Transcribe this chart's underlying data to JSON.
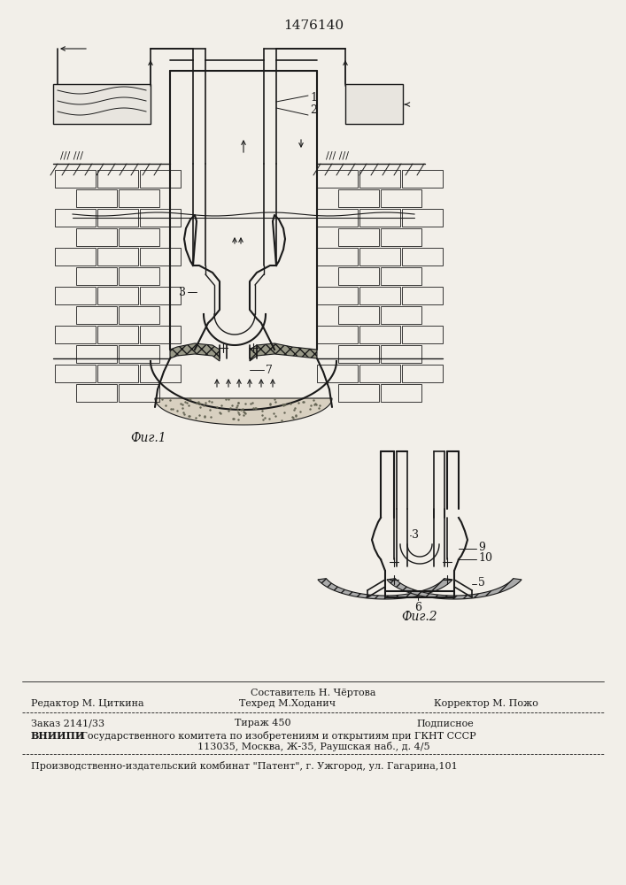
{
  "title": "1476140",
  "fig1_label": "Фиг.1",
  "fig2_label": "Фиг.2",
  "bg_color": "#f2efe9",
  "line_color": "#1a1a1a",
  "label1": "1",
  "label2": "2",
  "label3": "3",
  "label5": "5",
  "label6": "6",
  "label7": "7",
  "label9": "9",
  "label10": "10",
  "footer_line0_center": "Составитель Н. Чёртова",
  "footer_line1_left": "Редактор М. Циткина",
  "footer_line1_center": "Техред М.Ходанич",
  "footer_line1_right": "Корректор М. Пожо",
  "footer_line2_left": "Заказ 2141/33",
  "footer_line2_center": "Тираж 450",
  "footer_line2_right": "Подписное",
  "footer_vniip": "ВНИИПИ",
  "footer_line3_rest": " Государственного комитета по изобретениям и открытиям при ГКНТ СССР",
  "footer_line4": "113035, Москва, Ж-35, Раушская наб., д. 4/5",
  "footer_line5": "Производственно-издательский комбинат \"Патент\", г. Ужгород, ул. Гагарина,101"
}
